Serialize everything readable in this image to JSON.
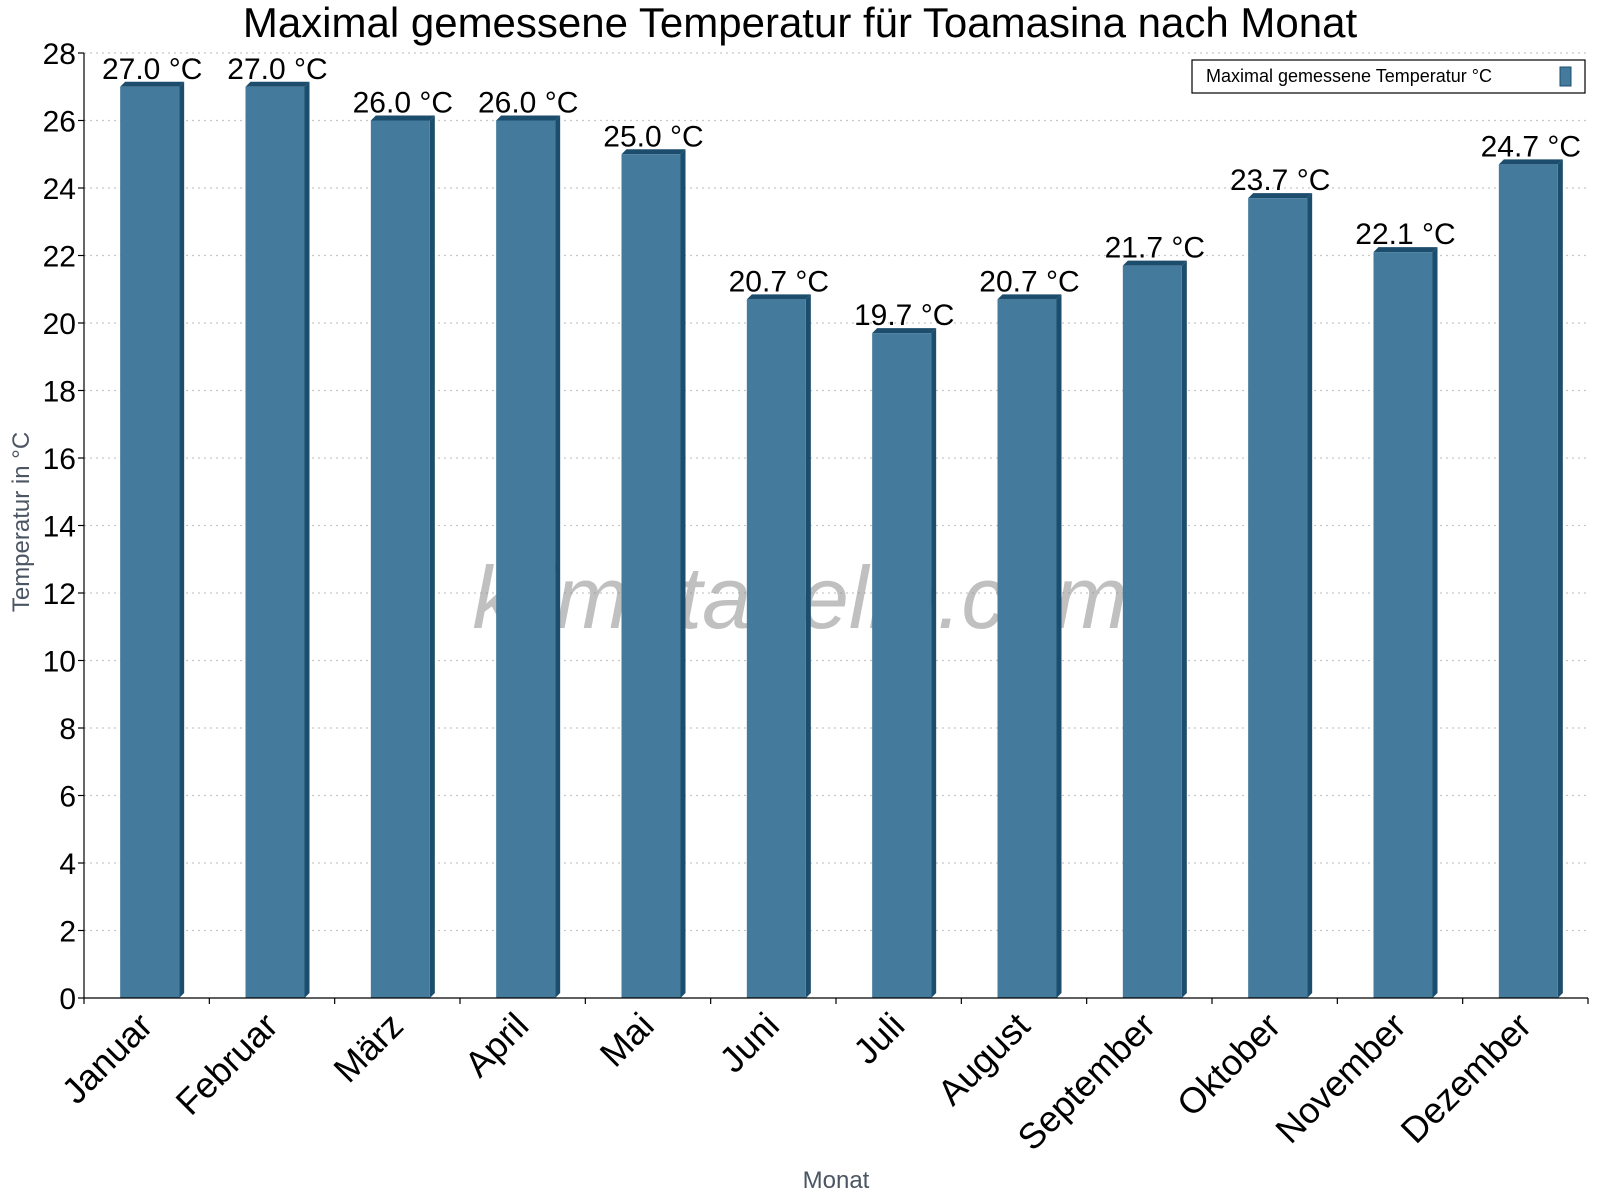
{
  "chart_data": {
    "type": "bar",
    "title": "Maximal gemessene Temperatur für Toamasina nach Monat",
    "xlabel": "Monat",
    "ylabel": "Temperatur in °C",
    "ylim": [
      0,
      28
    ],
    "yticks": [
      0,
      2,
      4,
      6,
      8,
      10,
      12,
      14,
      16,
      18,
      20,
      22,
      24,
      26,
      28
    ],
    "categories": [
      "Januar",
      "Februar",
      "März",
      "April",
      "Mai",
      "Juni",
      "Juli",
      "August",
      "September",
      "Oktober",
      "November",
      "Dezember"
    ],
    "series": [
      {
        "name": "Maximal gemessene Temperatur °C",
        "values": [
          27.0,
          27.0,
          26.0,
          26.0,
          25.0,
          20.7,
          19.7,
          20.7,
          21.7,
          23.7,
          22.1,
          24.7
        ],
        "value_labels": [
          "27.0 °C",
          "27.0 °C",
          "26.0 °C",
          "26.0 °C",
          "25.0 °C",
          "20.7 °C",
          "19.7 °C",
          "20.7 °C",
          "21.7 °C",
          "23.7 °C",
          "22.1 °C",
          "24.7 °C"
        ]
      }
    ],
    "grid": true,
    "legend_position": "top-right",
    "colors": {
      "bar_face": "#447a9c",
      "bar_side": "#1d4d6c",
      "grid": "#c8c8c8",
      "axis": "#000000"
    },
    "watermark": "klimatabelle.com"
  }
}
